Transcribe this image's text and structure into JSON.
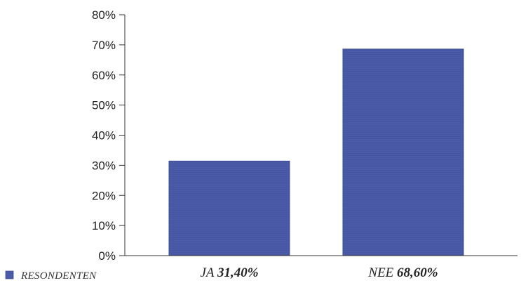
{
  "chart_data": {
    "type": "bar",
    "categories": [
      "JA",
      "NEE"
    ],
    "category_value_labels": [
      "31,40%",
      "68,60%"
    ],
    "series": [
      {
        "name": "RESONDENTEN",
        "values": [
          31.4,
          68.6
        ],
        "color": "#4b5aa6"
      }
    ],
    "ylim": [
      0,
      80
    ],
    "yticks": [
      "0%",
      "10%",
      "20%",
      "30%",
      "40%",
      "50%",
      "60%",
      "70%",
      "80%"
    ],
    "ytick_values": [
      0,
      10,
      20,
      30,
      40,
      50,
      60,
      70,
      80
    ],
    "grid": false,
    "legend_position": "bottom-left"
  }
}
